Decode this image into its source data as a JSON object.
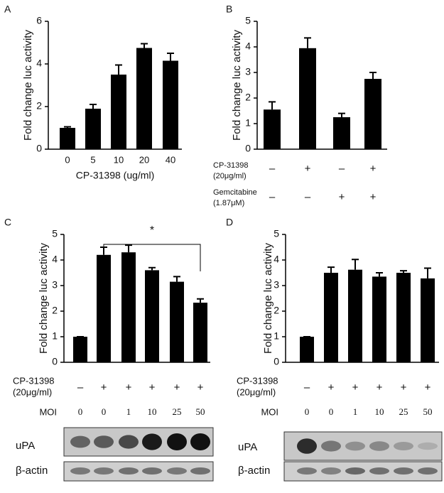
{
  "chart_data": [
    {
      "type": "bar",
      "panel": "A",
      "y_label": "Fold change luc activity",
      "x_label": "CP-31398 (ug/ml)",
      "categories": [
        "0",
        "5",
        "10",
        "20",
        "40"
      ],
      "values": [
        1.0,
        1.9,
        3.5,
        4.75,
        4.15
      ],
      "errors": [
        0.05,
        0.2,
        0.45,
        0.2,
        0.35
      ],
      "color": "#000000",
      "ylim": [
        0,
        6
      ],
      "yticks": [
        0,
        2,
        4,
        6
      ]
    },
    {
      "type": "bar",
      "panel": "B",
      "y_label": "Fold change luc activity",
      "values": [
        1.55,
        3.95,
        1.25,
        2.75
      ],
      "errors": [
        0.3,
        0.4,
        0.15,
        0.25
      ],
      "color": "#000000",
      "ylim": [
        0,
        5
      ],
      "yticks": [
        0,
        1,
        2,
        3,
        4,
        5
      ],
      "conditions": [
        {
          "label": [
            "CP-31398",
            "(20μg/ml)"
          ],
          "values": [
            "–",
            "+",
            "–",
            "+"
          ]
        },
        {
          "label": [
            "Gemcitabine",
            "(1.87μM)"
          ],
          "values": [
            "–",
            "–",
            "+",
            "+"
          ]
        }
      ]
    },
    {
      "type": "bar",
      "panel": "C",
      "y_label": "Fold change luc activity",
      "values": [
        1.0,
        4.2,
        4.3,
        3.6,
        3.15,
        2.33
      ],
      "errors": [
        0,
        0.3,
        0.28,
        0.1,
        0.2,
        0.15
      ],
      "color": "#000000",
      "ylim": [
        0,
        5
      ],
      "yticks": [
        0,
        1,
        2,
        3,
        4,
        5
      ],
      "annotation": "*",
      "conditions": [
        {
          "label": [
            "CP-31398",
            "(20μg/ml)"
          ],
          "values": [
            "–",
            "+",
            "+",
            "+",
            "+",
            "+"
          ]
        },
        {
          "label": [
            "MOI"
          ],
          "values": [
            "0",
            "0",
            "1",
            "10",
            "25",
            "50"
          ]
        }
      ],
      "blot_labels": [
        "uPA",
        "β-actin"
      ]
    },
    {
      "type": "bar",
      "panel": "D",
      "y_label": "Fold change luc activity",
      "values": [
        1.0,
        3.5,
        3.62,
        3.35,
        3.5,
        3.28
      ],
      "errors": [
        0,
        0.22,
        0.4,
        0.15,
        0.08,
        0.4
      ],
      "color": "#000000",
      "ylim": [
        0,
        5
      ],
      "yticks": [
        0,
        1,
        2,
        3,
        4,
        5
      ],
      "conditions": [
        {
          "label": [
            "CP-31398",
            "(20μg/ml)"
          ],
          "values": [
            "–",
            "+",
            "+",
            "+",
            "+",
            "+"
          ]
        },
        {
          "label": [
            "MOI"
          ],
          "values": [
            "0",
            "0",
            "1",
            "10",
            "25",
            "50"
          ]
        }
      ],
      "blot_labels": [
        "uPA",
        "β-actin"
      ]
    }
  ]
}
